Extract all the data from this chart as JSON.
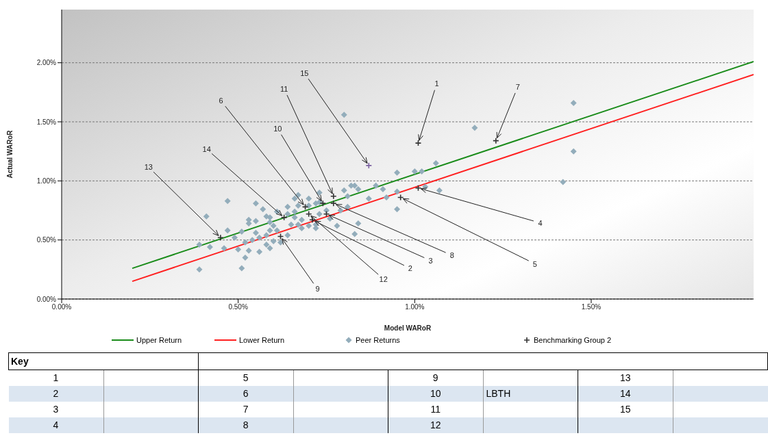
{
  "chart_data": {
    "type": "scatter",
    "xlabel": "Model WARoR",
    "ylabel": "Actual WARoR",
    "xlim": [
      0,
      1.96
    ],
    "ylim": [
      0,
      2.45
    ],
    "xticks": [
      {
        "value": 0,
        "label": "0.00%"
      },
      {
        "value": 0.5,
        "label": "0.50%"
      },
      {
        "value": 1,
        "label": "1.00%"
      },
      {
        "value": 1.5,
        "label": "1.50%"
      }
    ],
    "yticks": [
      {
        "value": 0,
        "label": "0.00%"
      },
      {
        "value": 0.5,
        "label": "0.50%"
      },
      {
        "value": 1,
        "label": "1.00%"
      },
      {
        "value": 1.5,
        "label": "1.50%"
      },
      {
        "value": 2,
        "label": "2.00%"
      }
    ],
    "grid": "y",
    "legend": "bottom",
    "series": [
      {
        "name": "Upper Return",
        "type": "line",
        "color": "#1a8c1a",
        "x": [
          0.2,
          1.96
        ],
        "values": [
          0.26,
          2.01
        ]
      },
      {
        "name": "Lower Return",
        "type": "line",
        "color": "#ff2020",
        "x": [
          0.2,
          1.96
        ],
        "values": [
          0.15,
          1.9
        ]
      },
      {
        "name": "Peer Returns",
        "marker": "diamond",
        "color": "#93adbb",
        "x": [
          0.39,
          0.41,
          0.47,
          0.39,
          0.42,
          0.46,
          0.51,
          0.8,
          1.17,
          1.42,
          1.45,
          1.45,
          1.06,
          0.95,
          1,
          1.02,
          1.03,
          1.07,
          0.95,
          0.92,
          0.95,
          0.91,
          0.89,
          0.87,
          0.84,
          0.82,
          0.8,
          0.81,
          0.47,
          0.49,
          0.5,
          0.52,
          0.53,
          0.51,
          0.53,
          0.53,
          0.55,
          0.57,
          0.55,
          0.55,
          0.56,
          0.54,
          0.52,
          0.58,
          0.58,
          0.59,
          0.6,
          0.59,
          0.59,
          0.61,
          0.64,
          0.66,
          0.66,
          0.67,
          0.67,
          0.65,
          0.67,
          0.68,
          0.64,
          0.61,
          0.62,
          0.59,
          0.7,
          0.72,
          0.73,
          0.73,
          0.72,
          0.72,
          0.68,
          0.7,
          0.75,
          0.76,
          0.78,
          0.79,
          0.81,
          0.83,
          0.84,
          0.83,
          0.73,
          0.7,
          0.66,
          0.64,
          0.6,
          0.56,
          0.58
        ],
        "values": [
          0.25,
          0.7,
          0.83,
          0.46,
          0.44,
          0.43,
          0.26,
          1.56,
          1.45,
          0.99,
          1.25,
          1.66,
          1.15,
          1.07,
          1.08,
          1.08,
          0.95,
          0.92,
          0.76,
          0.86,
          0.91,
          0.93,
          0.96,
          0.85,
          0.93,
          0.96,
          0.92,
          0.87,
          0.58,
          0.52,
          0.42,
          0.35,
          0.41,
          0.57,
          0.64,
          0.67,
          0.81,
          0.76,
          0.66,
          0.56,
          0.4,
          0.5,
          0.48,
          0.54,
          0.46,
          0.43,
          0.49,
          0.58,
          0.69,
          0.74,
          0.78,
          0.69,
          0.74,
          0.79,
          0.88,
          0.63,
          0.63,
          0.6,
          0.54,
          0.58,
          0.48,
          0.65,
          0.79,
          0.81,
          0.9,
          0.72,
          0.63,
          0.6,
          0.67,
          0.62,
          0.75,
          0.68,
          0.62,
          0.75,
          0.78,
          0.96,
          0.64,
          0.55,
          0.82,
          0.85,
          0.85,
          0.72,
          0.62,
          0.52,
          0.7
        ]
      },
      {
        "name": "Benchmarking  Group 2",
        "marker": "cross",
        "color": "#333333",
        "colors": [
          "#333333",
          "#333333",
          "#333333",
          "#333333",
          "#333333",
          "#333333",
          "#333333",
          "#333333",
          "#333333",
          "#333333",
          "#333333",
          "#333333",
          "#333333",
          "#333333",
          "#7a5fa0"
        ],
        "x": [
          1.01,
          0.71,
          0.75,
          1.01,
          0.96,
          0.69,
          1.23,
          0.77,
          0.62,
          0.74,
          0.77,
          0.7,
          0.45,
          0.63,
          0.87
        ],
        "values": [
          1.32,
          0.67,
          0.72,
          0.94,
          0.86,
          0.78,
          1.34,
          0.81,
          0.53,
          0.81,
          0.87,
          0.72,
          0.52,
          0.69,
          1.13
        ]
      }
    ],
    "annotations": [
      {
        "text": "1",
        "x": 1.01,
        "y": 1.32
      },
      {
        "text": "2",
        "x": 0.71,
        "y": 0.67
      },
      {
        "text": "3",
        "x": 0.75,
        "y": 0.72
      },
      {
        "text": "4",
        "x": 1.01,
        "y": 0.94
      },
      {
        "text": "5",
        "x": 0.96,
        "y": 0.86
      },
      {
        "text": "6",
        "x": 0.69,
        "y": 0.78
      },
      {
        "text": "7",
        "x": 1.23,
        "y": 1.34
      },
      {
        "text": "8",
        "x": 0.77,
        "y": 0.81
      },
      {
        "text": "9",
        "x": 0.62,
        "y": 0.53
      },
      {
        "text": "10",
        "x": 0.74,
        "y": 0.81
      },
      {
        "text": "11",
        "x": 0.77,
        "y": 0.87
      },
      {
        "text": "12",
        "x": 0.7,
        "y": 0.72
      },
      {
        "text": "13",
        "x": 0.45,
        "y": 0.52
      },
      {
        "text": "14",
        "x": 0.63,
        "y": 0.69
      },
      {
        "text": "15",
        "x": 0.87,
        "y": 1.13
      },
      "Key",
      "1",
      "2",
      "3",
      "4",
      "5",
      "6",
      "7",
      "8",
      "9",
      "10",
      "LBTH",
      "11",
      "12",
      "13",
      "14",
      "15"
    ]
  }
}
